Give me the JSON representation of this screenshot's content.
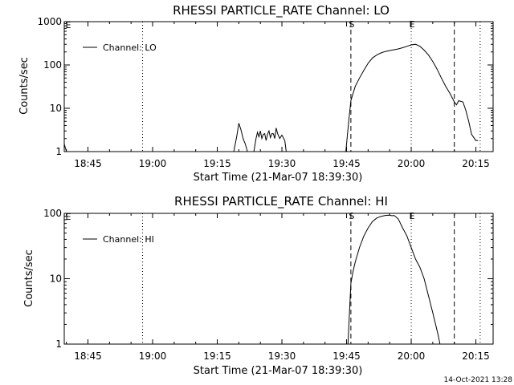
{
  "footer": {
    "timestamp": "14-Oct-2021 13:28"
  },
  "chart_data": [
    {
      "type": "line",
      "title": "RHESSI PARTICLE_RATE Channel: LO",
      "xlabel": "Start Time (21-Mar-07 18:39:30)",
      "ylabel": "Counts/sec",
      "yscale": "log",
      "xlim": [
        "18:39:30",
        "20:19:00"
      ],
      "ylim": [
        1,
        1000
      ],
      "xticks": [
        "18:45",
        "19:00",
        "19:15",
        "19:30",
        "19:45",
        "20:00",
        "20:15"
      ],
      "yticks": [
        "1",
        "10",
        "100",
        "1000"
      ],
      "legend": {
        "label": "Channel: LO",
        "position": "top-left"
      },
      "markers": [
        {
          "time": "18:57:40",
          "style": "dotted",
          "label": ""
        },
        {
          "time": "19:46:00",
          "style": "dashed",
          "label": "S"
        },
        {
          "time": "20:00:00",
          "style": "dotted",
          "label": "E"
        },
        {
          "time": "20:10:00",
          "style": "dashed",
          "label": ""
        },
        {
          "time": "20:16:00",
          "style": "dotted",
          "label": ""
        }
      ],
      "corner_markers": [
        {
          "time": "18:39:30",
          "label": "E"
        }
      ],
      "series": [
        {
          "name": "Channel: LO",
          "segments": [
            {
              "x": [
                "18:39:30",
                "18:40:00"
              ],
              "y": [
                1.5,
                1.0
              ]
            },
            {
              "x": [
                "19:18:50",
                "19:19:30",
                "19:20:00",
                "19:20:30",
                "19:21:00",
                "19:21:30",
                "19:22:00"
              ],
              "y": [
                1.0,
                2.2,
                4.5,
                3.2,
                2.0,
                1.5,
                1.0
              ]
            },
            {
              "x": [
                "19:23:30",
                "19:24:00",
                "19:24:20",
                "19:24:40",
                "19:25:00",
                "19:25:20",
                "19:25:40",
                "19:26:00",
                "19:26:20",
                "19:26:40",
                "19:27:00",
                "19:27:20",
                "19:27:40",
                "19:28:00",
                "19:28:20",
                "19:28:40",
                "19:29:00",
                "19:29:30",
                "19:30:00",
                "19:30:40",
                "19:31:00"
              ],
              "y": [
                1.0,
                2.0,
                2.8,
                2.2,
                3.0,
                2.0,
                2.5,
                2.6,
                1.8,
                2.5,
                3.0,
                2.1,
                2.6,
                2.6,
                2.0,
                3.5,
                2.6,
                2.0,
                2.4,
                1.8,
                1.0
              ]
            },
            {
              "x": [
                "19:44:50",
                "19:45:30",
                "19:46:00",
                "19:47:00",
                "19:48:00",
                "19:49:00",
                "19:50:00",
                "19:51:00",
                "19:52:00",
                "19:53:00",
                "19:54:00",
                "19:55:00",
                "19:56:00",
                "19:57:00",
                "19:58:00",
                "19:59:00",
                "20:00:00",
                "20:01:00",
                "20:02:00",
                "20:03:00",
                "20:04:00",
                "20:05:00",
                "20:06:00",
                "20:07:00",
                "20:08:00",
                "20:09:00",
                "20:10:00",
                "20:10:30",
                "20:11:00",
                "20:12:00",
                "20:12:40",
                "20:13:20",
                "20:14:00",
                "20:15:00",
                "20:15:30"
              ],
              "y": [
                1.0,
                5.0,
                15,
                32,
                50,
                75,
                110,
                145,
                170,
                190,
                205,
                215,
                225,
                235,
                250,
                270,
                290,
                300,
                270,
                220,
                170,
                120,
                80,
                50,
                32,
                22,
                14,
                12,
                15,
                14,
                9,
                5,
                2.5,
                1.8,
                1.8
              ]
            }
          ]
        }
      ]
    },
    {
      "type": "line",
      "title": "RHESSI PARTICLE_RATE Channel: HI",
      "xlabel": "Start Time (21-Mar-07 18:39:30)",
      "ylabel": "Counts/sec",
      "yscale": "log",
      "xlim": [
        "18:39:30",
        "20:19:00"
      ],
      "ylim": [
        1,
        100
      ],
      "xticks": [
        "18:45",
        "19:00",
        "19:15",
        "19:30",
        "19:45",
        "20:00",
        "20:15"
      ],
      "yticks": [
        "1",
        "10",
        "100"
      ],
      "legend": {
        "label": "Channel: HI",
        "position": "top-left"
      },
      "markers": [
        {
          "time": "18:57:40",
          "style": "dotted",
          "label": ""
        },
        {
          "time": "19:46:00",
          "style": "dashed",
          "label": "S"
        },
        {
          "time": "20:00:00",
          "style": "dotted",
          "label": "E"
        },
        {
          "time": "20:10:00",
          "style": "dashed",
          "label": ""
        },
        {
          "time": "20:16:00",
          "style": "dotted",
          "label": ""
        }
      ],
      "corner_markers": [
        {
          "time": "18:39:30",
          "label": "E"
        }
      ],
      "series": [
        {
          "name": "Channel: HI",
          "segments": [
            {
              "x": [
                "19:45:20",
                "19:45:40",
                "19:46:00",
                "19:46:30",
                "19:47:00",
                "19:48:00",
                "19:49:00",
                "19:50:00",
                "19:51:00",
                "19:52:00",
                "19:53:00",
                "19:54:00",
                "19:55:00",
                "19:55:30",
                "19:56:00",
                "19:56:30",
                "19:57:00",
                "19:58:00",
                "19:59:00",
                "20:00:00",
                "20:01:00",
                "20:02:00",
                "20:03:00",
                "20:04:00",
                "20:05:00",
                "20:05:40",
                "20:06:20",
                "20:06:40"
              ],
              "y": [
                1.0,
                3.0,
                8.5,
                13,
                18,
                30,
                45,
                60,
                75,
                85,
                90,
                93,
                94,
                92,
                93,
                88,
                82,
                60,
                45,
                30,
                20,
                15,
                10,
                5.5,
                3.0,
                2.0,
                1.3,
                1.0
              ]
            }
          ]
        }
      ]
    }
  ]
}
